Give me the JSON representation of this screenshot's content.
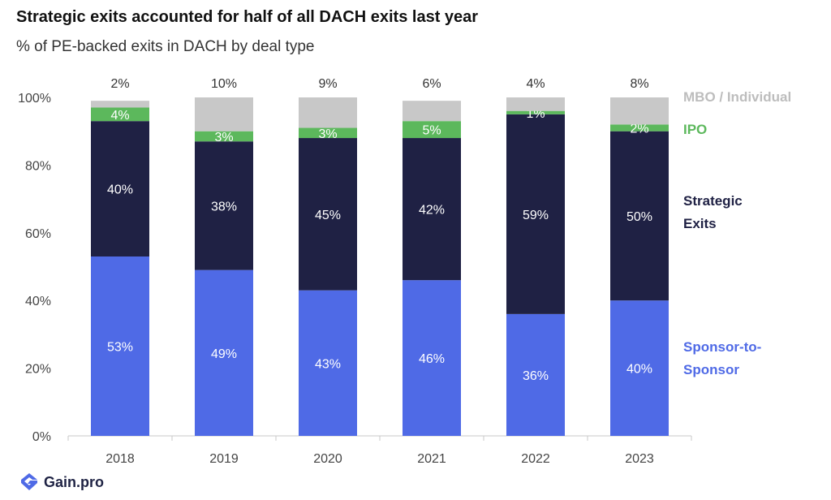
{
  "title": "Strategic exits accounted for half of all DACH exits last year",
  "subtitle": "% of PE-backed exits in DACH by deal type",
  "chart_data": {
    "type": "bar",
    "stacked": true,
    "categories": [
      "2018",
      "2019",
      "2020",
      "2021",
      "2022",
      "2023"
    ],
    "series": [
      {
        "name": "Sponsor-to-Sponsor",
        "values": [
          53,
          49,
          43,
          46,
          36,
          40
        ],
        "color": "#4f6ae6",
        "labels": [
          "53%",
          "49%",
          "43%",
          "46%",
          "36%",
          "40%"
        ]
      },
      {
        "name": "Strategic Exits",
        "values": [
          40,
          38,
          45,
          42,
          59,
          50
        ],
        "color": "#1f2144",
        "labels": [
          "40%",
          "38%",
          "45%",
          "42%",
          "59%",
          "50%"
        ]
      },
      {
        "name": "IPO",
        "values": [
          4,
          3,
          3,
          5,
          1,
          2
        ],
        "color": "#5cb85c",
        "labels": [
          "4%",
          "3%",
          "3%",
          "5%",
          "1%",
          "2%"
        ]
      },
      {
        "name": "MBO / Individual",
        "values": [
          2,
          10,
          9,
          6,
          4,
          8
        ],
        "color": "#c8c8c8",
        "labels": [
          "2%",
          "10%",
          "9%",
          "6%",
          "4%",
          "8%"
        ]
      }
    ],
    "legend": [
      {
        "lines": [
          "MBO / Individual"
        ],
        "color": "#bdbdbd"
      },
      {
        "lines": [
          "IPO"
        ],
        "color": "#5cb85c"
      },
      {
        "lines": [
          "Strategic",
          "Exits"
        ],
        "color": "#1f2144"
      },
      {
        "lines": [
          "Sponsor-to-",
          "Sponsor"
        ],
        "color": "#4f6ae6"
      }
    ],
    "yticks": [
      "0%",
      "20%",
      "40%",
      "60%",
      "80%",
      "100%"
    ],
    "ylim": [
      0,
      100
    ],
    "grid": false,
    "legend_placement": "right"
  },
  "logo": {
    "text": "Gain.pro",
    "name": "gain-pro-logo-icon"
  }
}
